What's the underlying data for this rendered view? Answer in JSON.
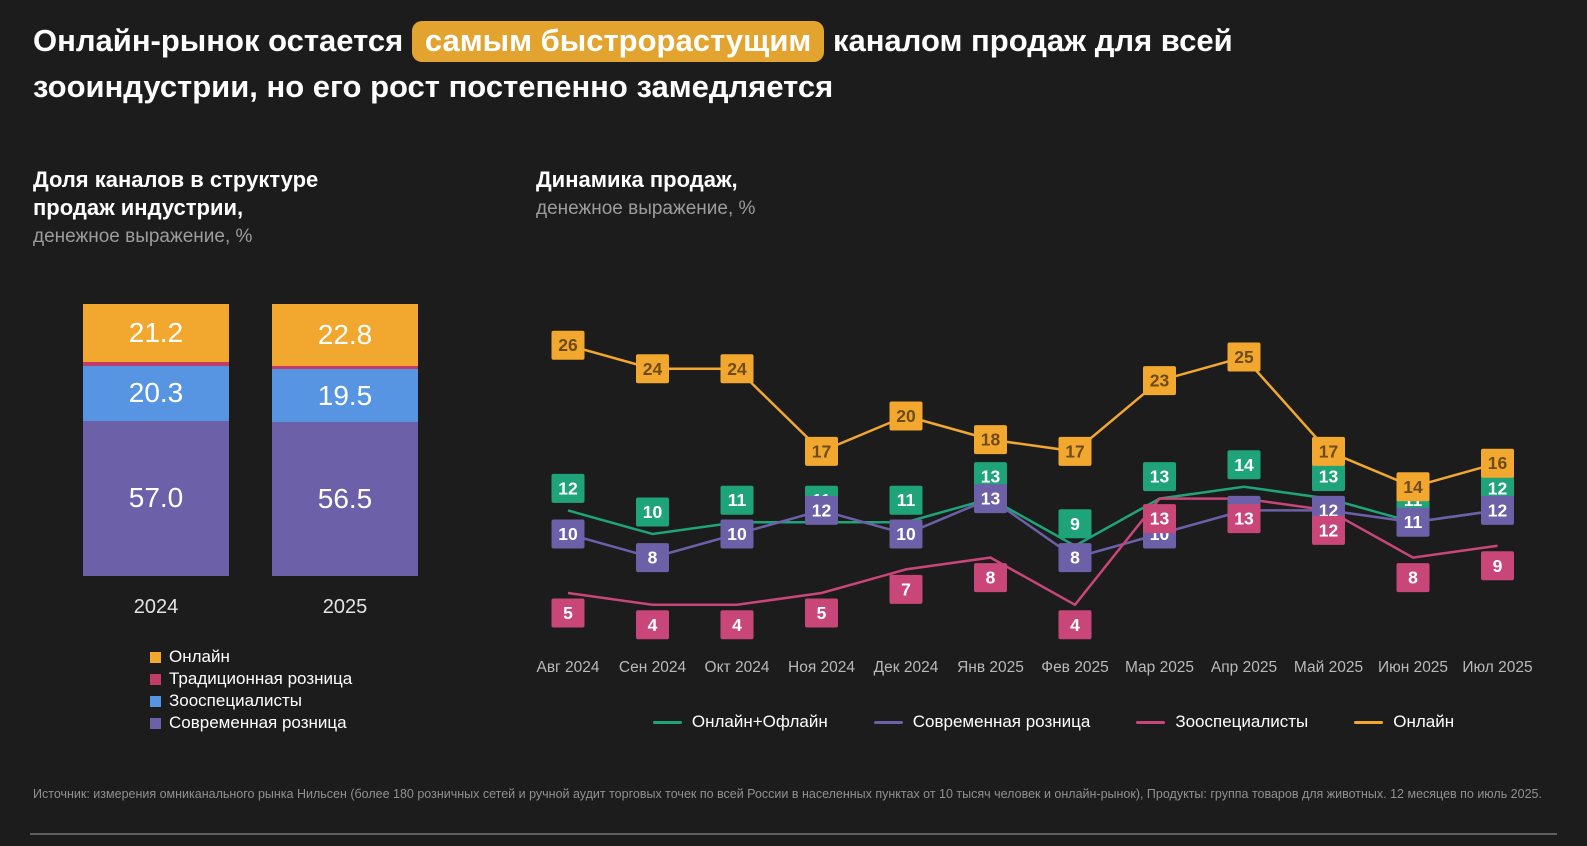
{
  "title": {
    "pre": "Онлайн-рынок остается",
    "highlight": "самым быстрорастущим",
    "post": "каналом продаж для всей зооиндустрии, но его рост постепенно замедляется"
  },
  "colors": {
    "background": "#1C1C1C",
    "highlight_bg": "#E3A42F",
    "online_orange": "#F2A72E",
    "traditional_pink": "#C13C66",
    "zoospecialists_blue": "#5795E2",
    "modern_retail_purple": "#6C60A8",
    "online_offline_green": "#1EA478",
    "axis_label_gray": "#B9B9B9",
    "divider_gray": "#5F5F5F"
  },
  "chart_data": [
    {
      "type": "bar",
      "stacked": true,
      "title": "Доля каналов в структуре продаж индустрии,",
      "subtitle": "денежное выражение, %",
      "categories": [
        "2024",
        "2025"
      ],
      "ylim": [
        0,
        100
      ],
      "legend_position": "bottom",
      "series": [
        {
          "name": "Онлайн",
          "color": "#F2A72E",
          "values": [
            21.2,
            22.8
          ],
          "show_label": true
        },
        {
          "name": "Традиционная розница",
          "color": "#C13C66",
          "values": [
            1.5,
            1.2
          ],
          "show_label": false
        },
        {
          "name": "Зооспециалисты",
          "color": "#5795E2",
          "values": [
            20.3,
            19.5
          ],
          "show_label": true
        },
        {
          "name": "Современная розница",
          "color": "#6C60A8",
          "values": [
            57.0,
            56.5
          ],
          "show_label": true
        }
      ]
    },
    {
      "type": "line",
      "title": "Динамика продаж,",
      "subtitle": "денежное выражение, %",
      "categories": [
        "Авг 2024",
        "Сен 2024",
        "Окт 2024",
        "Ноя 2024",
        "Дек 2024",
        "Янв 2025",
        "Фев 2025",
        "Мар 2025",
        "Апр 2025",
        "Май 2025",
        "Июн 2025",
        "Июл 2025"
      ],
      "ylim": [
        0,
        30
      ],
      "grid": false,
      "legend_position": "bottom",
      "series": [
        {
          "name": "Онлайн+Офлайн",
          "color": "#1EA478",
          "values": [
            12,
            10,
            11,
            11,
            11,
            13,
            9,
            13,
            14,
            13,
            11,
            12
          ],
          "label_position": "above",
          "label_text": "light"
        },
        {
          "name": "Современная розница",
          "color": "#6C60A8",
          "values": [
            10,
            8,
            10,
            12,
            10,
            13,
            8,
            10,
            12,
            12,
            11,
            12
          ],
          "label_position": "center",
          "label_text": "light"
        },
        {
          "name": "Зооспециалисты",
          "color": "#C84778",
          "values": [
            5,
            4,
            4,
            5,
            7,
            8,
            4,
            13,
            13,
            12,
            8,
            9
          ],
          "label_position": "below",
          "label_text": "light"
        },
        {
          "name": "Онлайн",
          "color": "#F2A72E",
          "values": [
            26,
            24,
            24,
            17,
            20,
            18,
            17,
            23,
            25,
            17,
            14,
            16
          ],
          "label_position": "center",
          "label_text": "dark"
        }
      ]
    }
  ],
  "footer": {
    "source": "Источник: измерения омниканального рынка Нильсен (более 180 розничных сетей и ручной аудит торговых точек по всей России в населенных пунктах от 10 тысяч человек и онлайн-рынок), Продукты: группа товаров для животных. 12 месяцев по июль 2025."
  }
}
